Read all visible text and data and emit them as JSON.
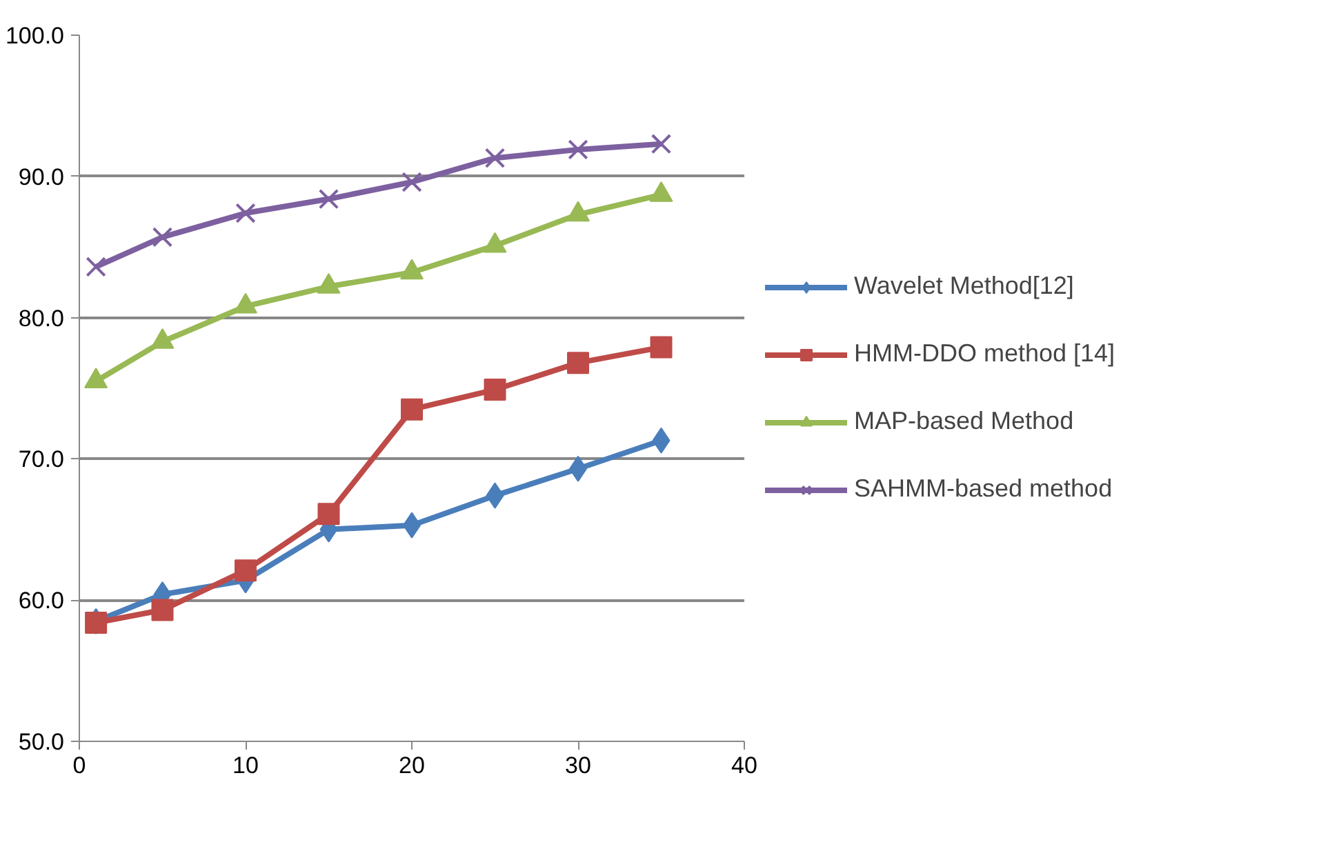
{
  "chart_data": {
    "type": "line",
    "x": [
      1,
      5,
      10,
      15,
      20,
      25,
      30,
      35
    ],
    "series": [
      {
        "name": "Wavelet Method[12]",
        "color": "#4a7ebb",
        "marker": "diamond",
        "values": [
          58.5,
          60.4,
          61.4,
          65.0,
          65.3,
          67.4,
          69.3,
          71.3
        ]
      },
      {
        "name": "HMM-DDO method [14]",
        "color": "#be4b48",
        "marker": "square",
        "values": [
          58.4,
          59.3,
          62.1,
          66.1,
          73.5,
          74.9,
          76.8,
          77.9
        ]
      },
      {
        "name": "MAP-based Method",
        "color": "#98b954",
        "marker": "triangle",
        "values": [
          75.5,
          78.3,
          80.8,
          82.2,
          83.2,
          85.1,
          87.3,
          88.7
        ]
      },
      {
        "name": "SAHMM-based method",
        "color": "#7d60a0",
        "marker": "cross",
        "values": [
          83.6,
          85.7,
          87.4,
          88.4,
          89.6,
          91.3,
          91.9,
          92.3
        ]
      }
    ],
    "xlim": [
      0,
      40
    ],
    "xticks": [
      0,
      10,
      20,
      30,
      40
    ],
    "ylim": [
      50,
      100
    ],
    "yticks": [
      {
        "value": 50,
        "label": "50.0"
      },
      {
        "value": 60,
        "label": "60.0"
      },
      {
        "value": 70,
        "label": "70.0"
      },
      {
        "value": 80,
        "label": "80.0"
      },
      {
        "value": 90,
        "label": "90.0"
      },
      {
        "value": 100,
        "label": "100.0"
      }
    ],
    "grid": "y",
    "legend": "right",
    "line_style": "solid"
  }
}
